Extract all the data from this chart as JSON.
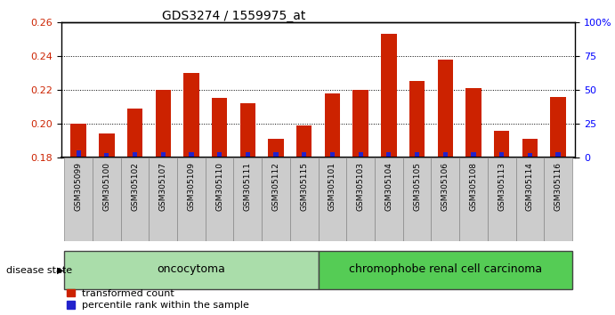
{
  "title": "GDS3274 / 1559975_at",
  "samples": [
    "GSM305099",
    "GSM305100",
    "GSM305102",
    "GSM305107",
    "GSM305109",
    "GSM305110",
    "GSM305111",
    "GSM305112",
    "GSM305115",
    "GSM305101",
    "GSM305103",
    "GSM305104",
    "GSM305105",
    "GSM305106",
    "GSM305108",
    "GSM305113",
    "GSM305114",
    "GSM305116"
  ],
  "transformed_count": [
    0.2,
    0.194,
    0.209,
    0.22,
    0.23,
    0.215,
    0.212,
    0.191,
    0.199,
    0.218,
    0.22,
    0.253,
    0.225,
    0.238,
    0.221,
    0.196,
    0.191,
    0.216
  ],
  "percentile_values": [
    5,
    3,
    4,
    4,
    4,
    4,
    4,
    4,
    4,
    4,
    4,
    4,
    4,
    4,
    4,
    4,
    3,
    4
  ],
  "baseline": 0.18,
  "ylim_left": [
    0.18,
    0.26
  ],
  "ylim_right": [
    0,
    100
  ],
  "yticks_left": [
    0.18,
    0.2,
    0.22,
    0.24,
    0.26
  ],
  "yticks_right": [
    0,
    25,
    50,
    75,
    100
  ],
  "ytick_labels_right": [
    "0",
    "25",
    "50",
    "75",
    "100%"
  ],
  "bar_color_red": "#cc2200",
  "bar_color_blue": "#2222cc",
  "group1_label": "oncocytoma",
  "group2_label": "chromophobe renal cell carcinoma",
  "group1_count": 9,
  "group2_count": 9,
  "disease_state_label": "disease state",
  "legend_red": "transformed count",
  "legend_blue": "percentile rank within the sample",
  "background_color": "#ffffff",
  "label_bg_color": "#cccccc",
  "group1_color": "#aaddaa",
  "group2_color": "#55cc55",
  "bar_width": 0.55
}
